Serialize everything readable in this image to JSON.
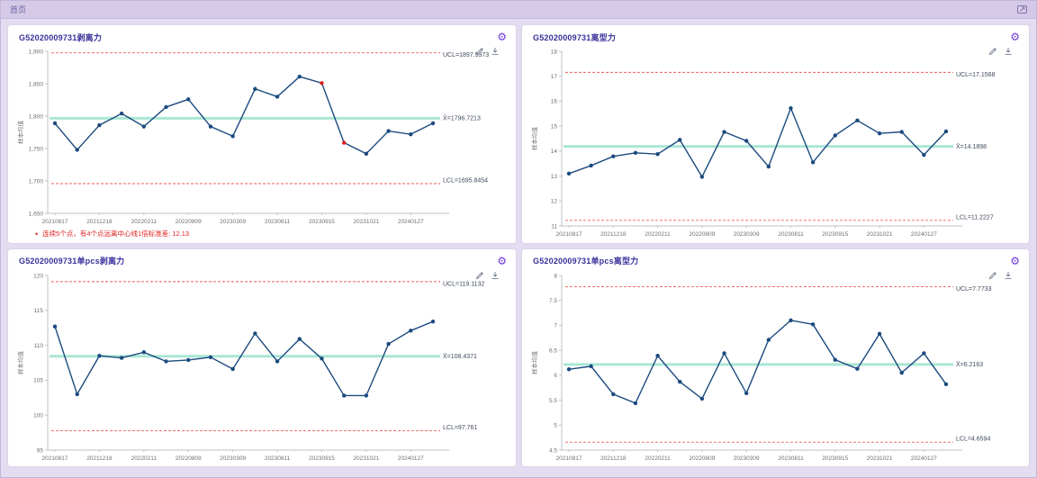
{
  "tab_bar": {
    "home_tab": "首页"
  },
  "icons": {
    "gear_glyph": "⚙",
    "settings": "gear-icon",
    "edit": "pencil-icon",
    "download": "download-icon",
    "expand": "expand-icon",
    "bullet": "•"
  },
  "colors": {
    "line": "#1b4a7e",
    "alert_point": "#e01f1f",
    "center_line": "#a9e7d5",
    "limit_line": "#f25a5a",
    "axis": "#c0c0c0",
    "tick_text": "#707070",
    "limit_text": "#3f4a5c",
    "accent": "#6d38d8",
    "title_text": "#39309b",
    "annotation_text": "#e02020",
    "topbar_bg": "#d4cae7",
    "page_bg": "#e4ddf1"
  },
  "chart_data": [
    {
      "type": "line",
      "title": "G52020009731剥离力",
      "ylabel": "样本均值",
      "ylim": [
        1650,
        1900
      ],
      "ytick_values": [
        1900,
        1850,
        1800,
        1750,
        1700,
        1650
      ],
      "ytick_labels": [
        "1,900",
        "1,850",
        "1,800",
        "1,750",
        "1,700",
        "1,650"
      ],
      "x_labels": [
        "20210817",
        "20211218",
        "20220211",
        "20220809",
        "20230309",
        "20230811",
        "20230915",
        "20231021",
        "20240127"
      ],
      "values": [
        1789,
        1748,
        1786,
        1804,
        1784,
        1814,
        1826,
        1784,
        1769,
        1842,
        1830,
        1861,
        1851,
        1759,
        1742,
        1777,
        1772,
        1789
      ],
      "alert_indices": [
        12,
        13
      ],
      "ucl": 1897.5973,
      "cl": 1796.7213,
      "lcl": 1695.8454,
      "labels": {
        "ucl": "UCL=1897.5973",
        "cl": "X̄=1796.7213",
        "lcl": "LCL=1695.8454"
      },
      "annotation": {
        "bullet": "•",
        "text": "连续5个点，有4个点远离中心线1倍标准差: 12.13"
      },
      "legend_position": "none",
      "grid": false
    },
    {
      "type": "line",
      "title": "G52020009731离型力",
      "ylabel": "样本均值",
      "ylim": [
        11,
        18
      ],
      "ytick_values": [
        18,
        17,
        16,
        15,
        14,
        13,
        12,
        11
      ],
      "ytick_labels": [
        "18",
        "17",
        "16",
        "15",
        "14",
        "13",
        "12",
        "11"
      ],
      "x_labels": [
        "20210817",
        "20211218",
        "20220211",
        "20220809",
        "20230309",
        "20230811",
        "20230915",
        "20231021",
        "20240127"
      ],
      "values": [
        13.1,
        13.42,
        13.79,
        13.93,
        13.88,
        14.45,
        12.97,
        14.77,
        14.41,
        13.38,
        15.72,
        13.55,
        14.63,
        15.23,
        14.71,
        14.77,
        13.85,
        14.79
      ],
      "alert_indices": [],
      "ucl": 17.1568,
      "cl": 14.1898,
      "lcl": 11.2227,
      "labels": {
        "ucl": "UCL=17.1568",
        "cl": "X̄=14.1898",
        "lcl": "LCL=11.2227"
      },
      "legend_position": "none",
      "grid": false
    },
    {
      "type": "line",
      "title": "G52020009731单pcs剥离力",
      "ylabel": "样本均值",
      "ylim": [
        95,
        120
      ],
      "ytick_values": [
        120,
        115,
        110,
        105,
        100,
        95
      ],
      "ytick_labels": [
        "120",
        "115",
        "110",
        "105",
        "100",
        "95"
      ],
      "x_labels": [
        "20210817",
        "20211218",
        "20220211",
        "20220809",
        "20230309",
        "20230811",
        "20230915",
        "20231021",
        "20240127"
      ],
      "values": [
        112.7,
        103.0,
        108.5,
        108.2,
        109.0,
        107.7,
        107.9,
        108.3,
        106.6,
        111.7,
        107.7,
        110.9,
        108.1,
        102.8,
        102.8,
        110.2,
        112.1,
        113.4
      ],
      "alert_indices": [],
      "ucl": 119.1132,
      "cl": 108.4371,
      "lcl": 97.761,
      "labels": {
        "ucl": "UCL=119.1132",
        "cl": "X̄=108.4371",
        "lcl": "LCL=97.761"
      },
      "legend_position": "none",
      "grid": false
    },
    {
      "type": "line",
      "title": "G52020009731单pcs离型力",
      "ylabel": "样本均值",
      "ylim": [
        4.5,
        8
      ],
      "ytick_values": [
        8,
        7.5,
        7,
        6.5,
        6,
        5.5,
        5,
        4.5
      ],
      "ytick_labels": [
        "8",
        "7.5",
        "7",
        "6.5",
        "6",
        "5.5",
        "5",
        "4.5"
      ],
      "x_labels": [
        "20210817",
        "20211218",
        "20220211",
        "20220809",
        "20230309",
        "20230811",
        "20230915",
        "20231021",
        "20240127"
      ],
      "values": [
        6.12,
        6.18,
        5.62,
        5.44,
        6.39,
        5.87,
        5.53,
        6.44,
        5.64,
        6.71,
        7.1,
        7.02,
        6.31,
        6.13,
        6.83,
        6.05,
        6.44,
        5.82
      ],
      "alert_indices": [],
      "ucl": 7.7733,
      "cl": 6.2163,
      "lcl": 4.6594,
      "labels": {
        "ucl": "UCL=7.7733",
        "cl": "X̄=6.2163",
        "lcl": "LCL=4.6594"
      },
      "legend_position": "none",
      "grid": false
    }
  ]
}
